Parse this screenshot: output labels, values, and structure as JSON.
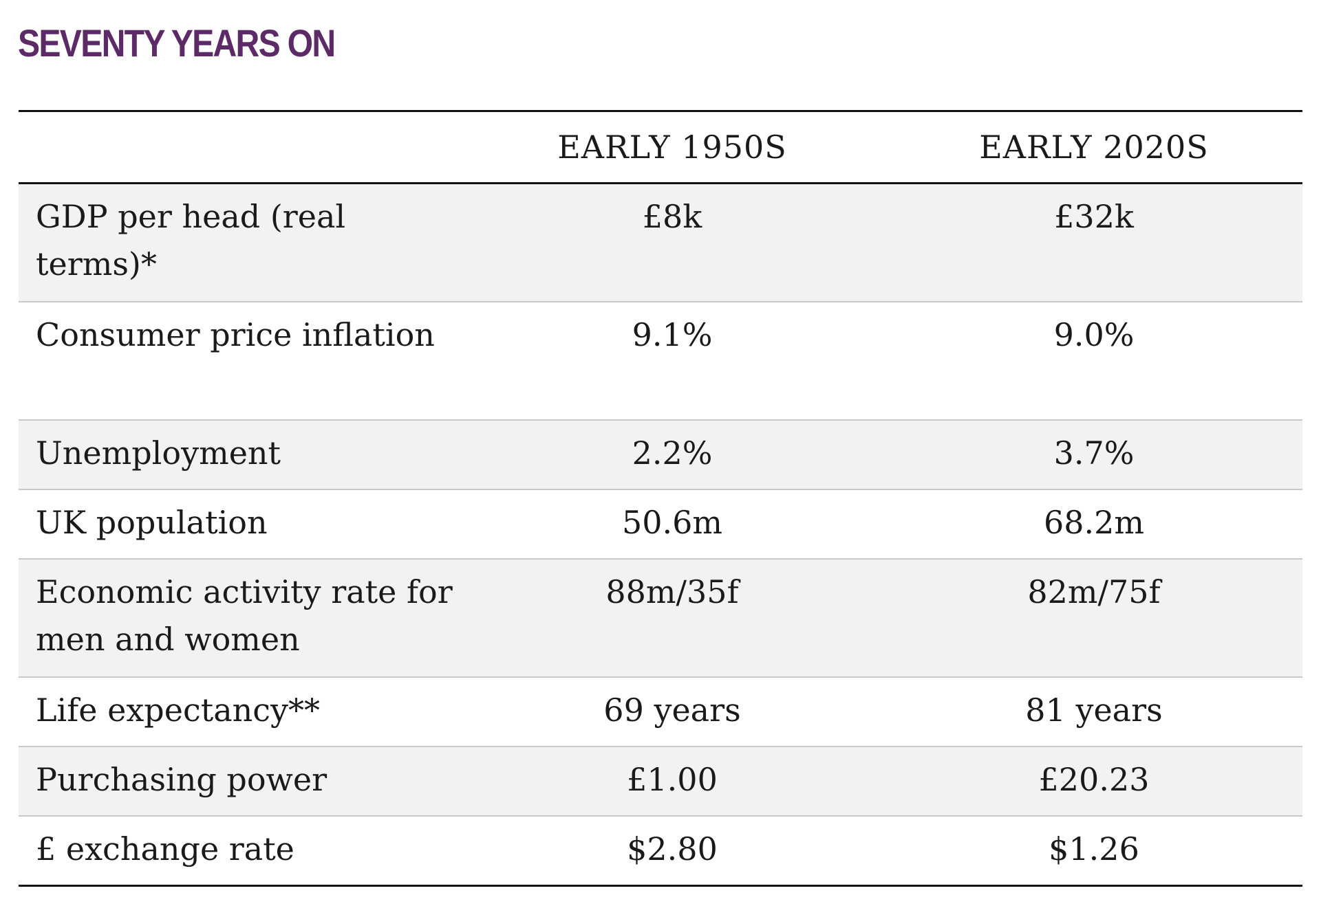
{
  "title": "SEVENTY YEARS ON",
  "table": {
    "columns": [
      "",
      "EARLY 1950S",
      "EARLY 2020S"
    ],
    "rows": [
      {
        "label": "GDP per head (real terms)*",
        "early_1950s": "£8k",
        "early_2020s": "£32k"
      },
      {
        "label": "Consumer price inflation",
        "early_1950s": "9.1%",
        "early_2020s": "9.0%"
      },
      {
        "label": "Unemployment",
        "early_1950s": "2.2%",
        "early_2020s": "3.7%"
      },
      {
        "label": "UK population",
        "early_1950s": "50.6m",
        "early_2020s": "68.2m"
      },
      {
        "label": "Economic activity rate for men and women",
        "early_1950s": "88m/35f",
        "early_2020s": "82m/75f"
      },
      {
        "label": "Life expectancy**",
        "early_1950s": "69 years",
        "early_2020s": "81 years"
      },
      {
        "label": "Purchasing power",
        "early_1950s": "£1.00",
        "early_2020s": "£20.23"
      },
      {
        "label": "£ exchange rate",
        "early_1950s": "$2.80",
        "early_2020s": "$1.26"
      }
    ]
  }
}
